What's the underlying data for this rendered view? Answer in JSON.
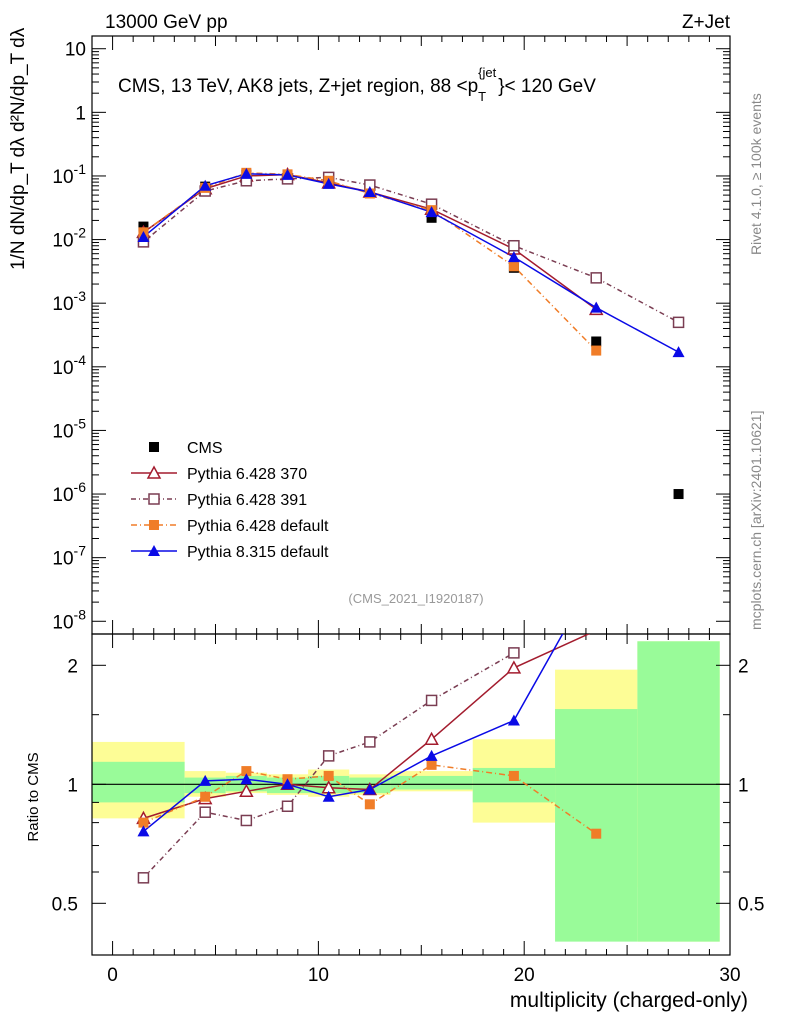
{
  "header": {
    "left": "13000 GeV pp",
    "right": "Z+Jet"
  },
  "side_text": {
    "top": "Rivet 4.1.0, ≥ 100k events",
    "bottom": "mcplots.cern.ch [arXiv:2401.10621]"
  },
  "chart_data": {
    "type": "scatter",
    "title": "CMS, 13 TeV, AK8 jets, Z+jet region, 88 <p_T^{jet}< 120 GeV",
    "title_parts": {
      "main": "CMS, 13 TeV, AK8 jets, Z+jet region, 88 <p",
      "sub": "T",
      "sup": "{jet",
      "tail": "}< 120 GeV"
    },
    "watermark": "(CMS_2021_I1920187)",
    "xlabel": "multiplicity (charged-only)",
    "ylabel_top": "1/N dN/dp_T dλ  d²N/dp_T dλ",
    "ylabel_ratio": "Ratio to CMS",
    "xlim": [
      -1,
      30
    ],
    "ylim_log": [
      1e-08,
      10
    ],
    "ratio_ylim": [
      0.4,
      2.3
    ],
    "x_ticks": [
      "0",
      "10",
      "20",
      "30"
    ],
    "y_ticks_main": [
      {
        "base": "10",
        "exp": "-8",
        "v": -8
      },
      {
        "base": "10",
        "exp": "-7",
        "v": -7
      },
      {
        "base": "10",
        "exp": "-6",
        "v": -6
      },
      {
        "base": "10",
        "exp": "-5",
        "v": -5
      },
      {
        "base": "10",
        "exp": "-4",
        "v": -4
      },
      {
        "base": "10",
        "exp": "-3",
        "v": -3
      },
      {
        "base": "10",
        "exp": "-2",
        "v": -2
      },
      {
        "base": "10",
        "exp": "-1",
        "v": -1
      },
      {
        "base": "1",
        "exp": "",
        "v": 0
      },
      {
        "base": "10",
        "exp": "",
        "v": 1
      }
    ],
    "y_ticks_ratio": [
      "0.5",
      "1",
      "2"
    ],
    "x": [
      1.5,
      4.5,
      6.5,
      8.5,
      10.5,
      12.5,
      15.5,
      19.5,
      23.5,
      27.5
    ],
    "bin_edges": [
      -1,
      3.5,
      5.5,
      7.5,
      9.5,
      11.5,
      13.5,
      17.5,
      21.5,
      25.5,
      29.5
    ],
    "band_green": [
      [
        0.9,
        1.14
      ],
      [
        0.95,
        1.04
      ],
      [
        0.96,
        1.05
      ],
      [
        0.95,
        1.04
      ],
      [
        0.95,
        1.05
      ],
      [
        0.95,
        1.04
      ],
      [
        0.97,
        1.05
      ],
      [
        0.9,
        1.1
      ],
      [
        0.4,
        1.55
      ],
      [
        0.4,
        2.3
      ]
    ],
    "band_yellow": [
      [
        0.82,
        1.28
      ],
      [
        0.93,
        1.08
      ],
      [
        0.95,
        1.07
      ],
      [
        0.94,
        1.06
      ],
      [
        0.93,
        1.09
      ],
      [
        0.94,
        1.06
      ],
      [
        0.96,
        1.08
      ],
      [
        0.8,
        1.3
      ],
      [
        0.55,
        1.95
      ],
      [
        0.4,
        2.3
      ]
    ],
    "series": [
      {
        "name": "CMS",
        "color": "#000000",
        "marker": "square-filled",
        "values": [
          0.016,
          0.068,
          0.105,
          0.103,
          0.08,
          0.058,
          0.022,
          0.0036,
          0.00025,
          1e-06
        ],
        "ratio": [
          1,
          1,
          1,
          1,
          1,
          1,
          1,
          1,
          1,
          1
        ]
      },
      {
        "name": "Pythia 6.428 370",
        "color": "#a31c2e",
        "marker": "triangle-open",
        "dash": "solid",
        "values": [
          0.013,
          0.063,
          0.1,
          0.105,
          0.078,
          0.056,
          0.03,
          0.0071,
          0.0008,
          null
        ],
        "ratio": [
          0.82,
          0.92,
          0.96,
          1.0,
          0.98,
          0.97,
          1.3,
          1.97,
          2.45,
          null
        ]
      },
      {
        "name": "Pythia 6.428 391",
        "color": "#7a3d52",
        "marker": "square-open",
        "dash": "5,3,1,3",
        "values": [
          0.0092,
          0.058,
          0.084,
          0.09,
          0.095,
          0.072,
          0.036,
          0.008,
          0.0025,
          0.0005
        ],
        "ratio": [
          0.58,
          0.85,
          0.81,
          0.88,
          1.18,
          1.28,
          1.63,
          2.15,
          null,
          null
        ]
      },
      {
        "name": "Pythia 6.428 default",
        "color": "#f07d28",
        "marker": "square-filled",
        "dash": "6,3,1,3",
        "values": [
          0.013,
          0.065,
          0.112,
          0.106,
          0.084,
          0.053,
          0.029,
          0.0038,
          0.00018,
          null
        ],
        "ratio": [
          0.8,
          0.93,
          1.08,
          1.03,
          1.05,
          0.89,
          1.12,
          1.05,
          0.75,
          null
        ]
      },
      {
        "name": "Pythia 8.315 default",
        "color": "#0a0ae6",
        "marker": "triangle-filled",
        "dash": "solid",
        "values": [
          0.011,
          0.07,
          0.108,
          0.104,
          0.075,
          0.056,
          0.027,
          0.0053,
          0.00085,
          0.00017
        ],
        "ratio": [
          0.76,
          1.02,
          1.03,
          1.0,
          0.93,
          0.97,
          1.18,
          1.45,
          3.4,
          null
        ]
      }
    ],
    "legend_position": "left-middle"
  }
}
